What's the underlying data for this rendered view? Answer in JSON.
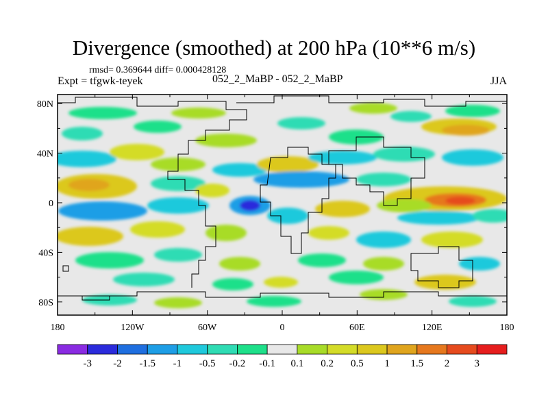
{
  "title": "Divergence (smoothed) at 200 hPa (10**6 m/s)",
  "stats_text": "rmsd= 0.369644 diff= 0.000428128",
  "expt_text": "Expt = tfgwk-teyek",
  "case_text": "052_2_MaBP - 052_2_MaBP",
  "season": "JJA",
  "lat_labels": [
    "80N",
    "40N",
    "0",
    "40S",
    "80S"
  ],
  "lat_values": [
    80,
    40,
    0,
    -40,
    -80
  ],
  "lon_labels": [
    "180",
    "120W",
    "60W",
    "0",
    "60E",
    "120E",
    "180"
  ],
  "lon_values": [
    -180,
    -120,
    -60,
    0,
    60,
    120,
    180
  ],
  "colorbar": {
    "colors": [
      "#8a2be2",
      "#2b2bdc",
      "#1f6fe0",
      "#1e9ee6",
      "#1fc9dc",
      "#2fdcb4",
      "#1ee08a",
      "#e8e8e8",
      "#a8dc28",
      "#d4dc28",
      "#dcc81e",
      "#e0a51e",
      "#e6781e",
      "#e64b1e",
      "#e61e1e"
    ],
    "labels": [
      "-3",
      "-2",
      "-1.5",
      "-1",
      "-0.5",
      "-0.2",
      "-0.1",
      "0.1",
      "0.2",
      "0.5",
      "1",
      "1.5",
      "2",
      "3"
    ]
  }
}
